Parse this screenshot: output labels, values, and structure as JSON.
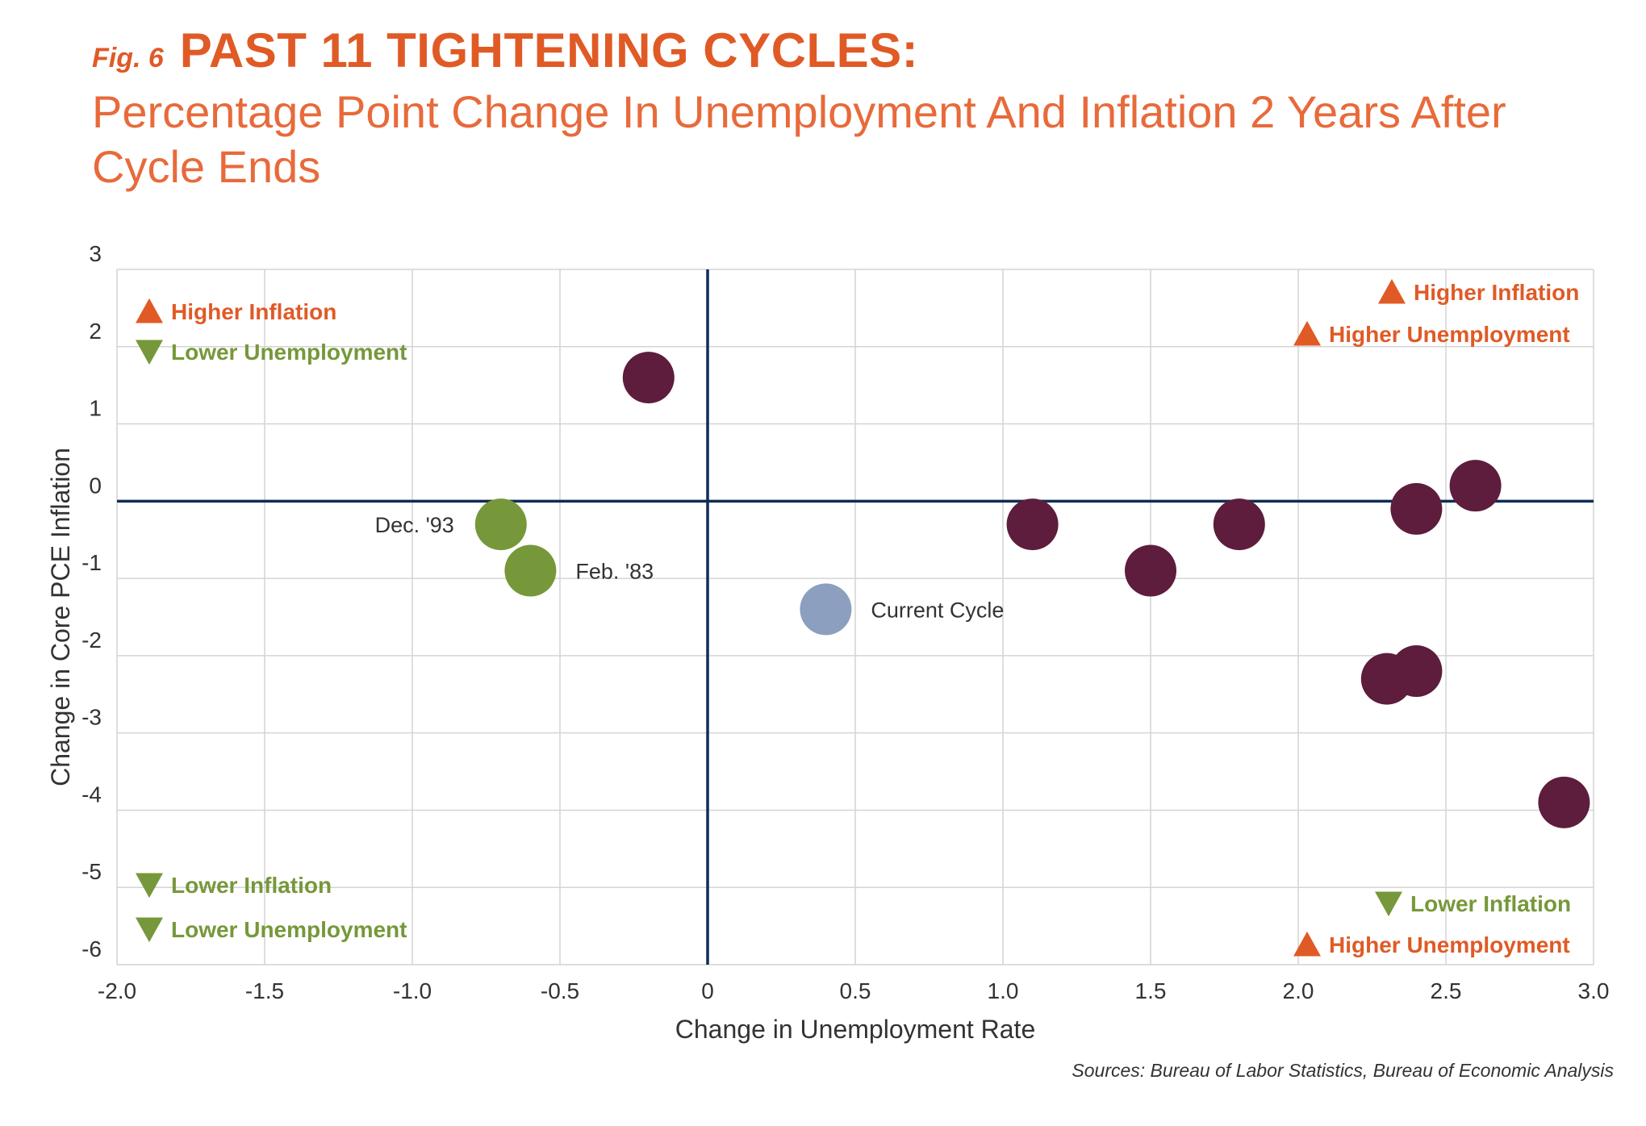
{
  "header": {
    "fig_label": "Fig. 6",
    "title": "PAST 11 TIGHTENING CYCLES:",
    "subtitle": "Percentage Point Change In Unemployment And Inflation 2 Years After Cycle Ends"
  },
  "source": "Sources: Bureau of Labor Statistics, Bureau of Economic Analysis",
  "colors": {
    "accent_orange": "#e05a26",
    "green": "#76983a",
    "maroon": "#5e1d3d",
    "current": "#8c9fbf",
    "axis_line": "#0f2d55",
    "grid": "#d4d4d4"
  },
  "chart_data": {
    "type": "scatter",
    "xlabel": "Change in Unemployment Rate",
    "ylabel": "Change in Core PCE Inflation",
    "xlim": [
      -2.0,
      3.0
    ],
    "ylim": [
      -6,
      3
    ],
    "x_ticks": [
      "-2.0",
      "-1.5",
      "-1.0",
      "-0.5",
      "0",
      "0.5",
      "1.0",
      "1.5",
      "2.0",
      "2.5",
      "3.0"
    ],
    "x_tick_values": [
      -2.0,
      -1.5,
      -1.0,
      -0.5,
      0,
      0.5,
      1.0,
      1.5,
      2.0,
      2.5,
      3.0
    ],
    "y_ticks": [
      "3",
      "2",
      "1",
      "0",
      "-1",
      "-2",
      "-3",
      "-4",
      "-5",
      "-6"
    ],
    "y_tick_values": [
      3,
      2,
      1,
      0,
      -1,
      -2,
      -3,
      -4,
      -5,
      -6
    ],
    "grid": true,
    "points": [
      {
        "x": -0.7,
        "y": -0.3,
        "color": "#76983a",
        "label": "Dec. '93",
        "label_side": "left"
      },
      {
        "x": -0.6,
        "y": -0.9,
        "color": "#76983a",
        "label": "Feb. '83",
        "label_side": "right"
      },
      {
        "x": -0.2,
        "y": 1.6,
        "color": "#5e1d3d",
        "label": ""
      },
      {
        "x": 0.4,
        "y": -1.4,
        "color": "#8c9fbf",
        "label": "Current Cycle",
        "label_side": "right"
      },
      {
        "x": 1.1,
        "y": -0.3,
        "color": "#5e1d3d",
        "label": ""
      },
      {
        "x": 1.5,
        "y": -0.9,
        "color": "#5e1d3d",
        "label": ""
      },
      {
        "x": 1.8,
        "y": -0.3,
        "color": "#5e1d3d",
        "label": ""
      },
      {
        "x": 2.3,
        "y": -2.3,
        "color": "#5e1d3d",
        "label": ""
      },
      {
        "x": 2.4,
        "y": -2.2,
        "color": "#5e1d3d",
        "label": ""
      },
      {
        "x": 2.4,
        "y": -0.1,
        "color": "#5e1d3d",
        "label": ""
      },
      {
        "x": 2.6,
        "y": 0.2,
        "color": "#5e1d3d",
        "label": ""
      },
      {
        "x": 2.9,
        "y": -3.9,
        "color": "#5e1d3d",
        "label": ""
      }
    ],
    "quadrant_labels": [
      {
        "quadrant": "top-left",
        "items": [
          {
            "text": "Higher Inflation",
            "direction": "up",
            "color": "#e05a26"
          },
          {
            "text": "Lower Unemployment",
            "direction": "down",
            "color": "#76983a"
          }
        ]
      },
      {
        "quadrant": "top-right",
        "items": [
          {
            "text": "Higher Inflation",
            "direction": "up",
            "color": "#e05a26"
          },
          {
            "text": "Higher Unemployment",
            "direction": "up",
            "color": "#e05a26"
          }
        ]
      },
      {
        "quadrant": "bottom-left",
        "items": [
          {
            "text": "Lower Inflation",
            "direction": "down",
            "color": "#76983a"
          },
          {
            "text": "Lower Unemployment",
            "direction": "down",
            "color": "#76983a"
          }
        ]
      },
      {
        "quadrant": "bottom-right",
        "items": [
          {
            "text": "Lower Inflation",
            "direction": "down",
            "color": "#76983a"
          },
          {
            "text": "Higher Unemployment",
            "direction": "up",
            "color": "#e05a26"
          }
        ]
      }
    ]
  }
}
